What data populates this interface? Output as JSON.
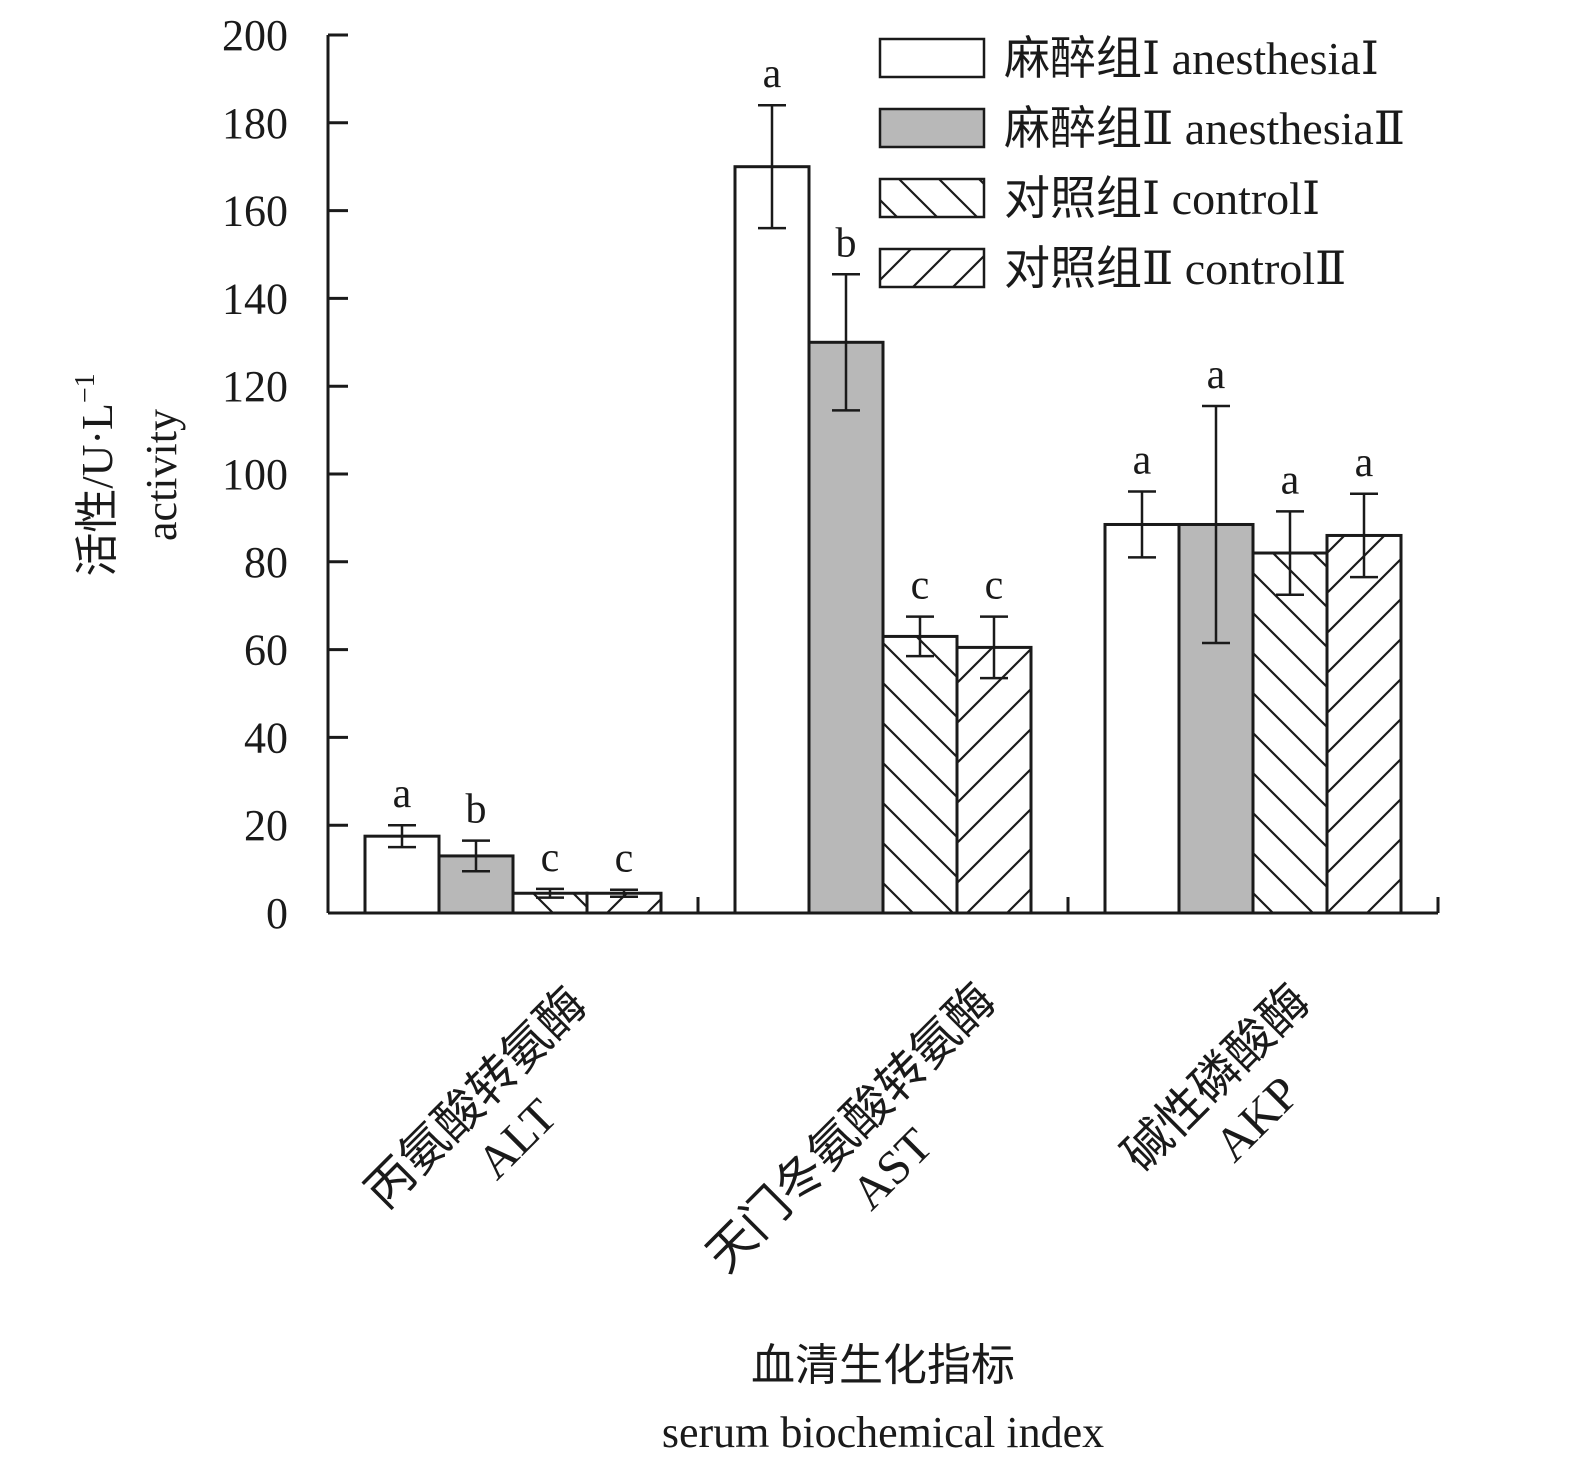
{
  "chart_data": {
    "type": "bar",
    "title": "",
    "ylabel_cn": "活性/U·L",
    "ylabel_sup": "−1",
    "ylabel_en": "activity",
    "xlabel_cn": "血清生化指标",
    "xlabel_en": "serum biochemical index",
    "ylim": [
      0,
      200
    ],
    "yticks": [
      0,
      20,
      40,
      60,
      80,
      100,
      120,
      140,
      160,
      180,
      200
    ],
    "grid": false,
    "legend_position": "top-right",
    "categories": [
      {
        "cn": "丙氨酸转氨酶",
        "en": "ALT"
      },
      {
        "cn": "天门冬氨酸转氨酶",
        "en": "AST"
      },
      {
        "cn": "碱性磷酸酶",
        "en": "AKP"
      }
    ],
    "series": [
      {
        "name": "麻醉组Ⅰ anesthesiaⅠ",
        "fill": "white",
        "values": [
          17.5,
          170,
          88.5
        ],
        "errors": [
          2.5,
          14,
          7.5
        ],
        "letters": [
          "a",
          "a",
          "a"
        ]
      },
      {
        "name": "麻醉组Ⅱ anesthesiaⅡ",
        "fill": "gray",
        "values": [
          13,
          130,
          88.5
        ],
        "errors": [
          3.5,
          15.5,
          27
        ],
        "letters": [
          "b",
          "b",
          "a"
        ]
      },
      {
        "name": "对照组Ⅰ controlⅠ",
        "fill": "hatch-back",
        "values": [
          4.5,
          63,
          82
        ],
        "errors": [
          1,
          4.5,
          9.5
        ],
        "letters": [
          "c",
          "c",
          "a"
        ]
      },
      {
        "name": "对照组Ⅱ controlⅡ",
        "fill": "hatch-fwd",
        "values": [
          4.5,
          60.5,
          86
        ],
        "errors": [
          0.8,
          7,
          9.5
        ],
        "letters": [
          "c",
          "c",
          "a"
        ]
      }
    ],
    "colors": {
      "gray": "#b8b8b8",
      "ink": "#1a1a1a",
      "white": "#ffffff"
    }
  }
}
